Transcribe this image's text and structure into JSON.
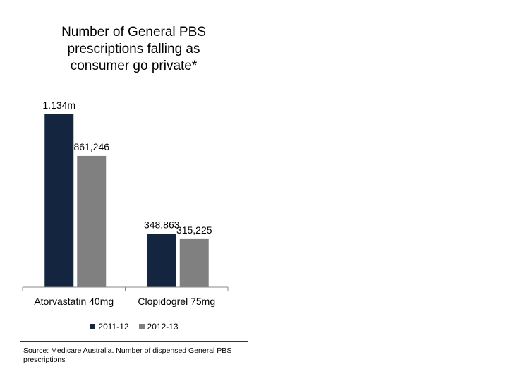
{
  "chart_data": {
    "type": "bar",
    "title_lines": [
      "Number of General PBS",
      "prescriptions falling as",
      "consumer go private*"
    ],
    "categories": [
      "Atorvastatin 40mg",
      "Clopidogrel 75mg"
    ],
    "series": [
      {
        "name": "2011-12",
        "color": "#142540",
        "values": [
          1134000,
          348863
        ],
        "labels": [
          "1.134m",
          "348,863"
        ]
      },
      {
        "name": "2012-13",
        "color": "#808080",
        "values": [
          861246,
          315225
        ],
        "labels": [
          "861,246",
          "315,225"
        ]
      }
    ],
    "ylim": [
      0,
      1134000
    ],
    "grid": false,
    "legend_position": "bottom",
    "source": "Source: Medicare Australia. Number of dispensed General PBS prescriptions"
  }
}
